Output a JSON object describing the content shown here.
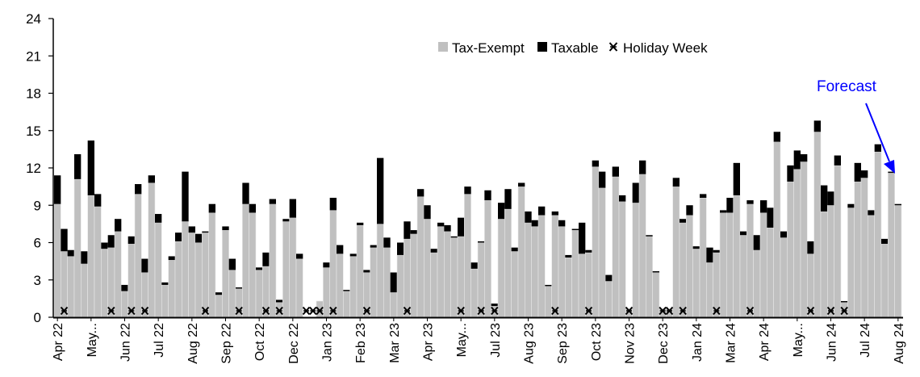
{
  "chart_data": {
    "type": "bar",
    "stacked": true,
    "title": "",
    "xlabel": "",
    "ylabel": "",
    "ylim": [
      0,
      24
    ],
    "yticks": [
      0,
      3,
      6,
      9,
      12,
      15,
      18,
      21,
      24
    ],
    "grid": false,
    "legend": {
      "placement": "top-center",
      "entries": [
        {
          "label": "Tax-Exempt",
          "symbol": "grey-square"
        },
        {
          "label": "Taxable",
          "symbol": "black-square"
        },
        {
          "label": "Holiday Week",
          "symbol": "x-marker"
        }
      ]
    },
    "x_tick_labels": [
      "Apr 22",
      "May...",
      "Jun 22",
      "Jul 22",
      "Aug 22",
      "Sep 22",
      "Oct 22",
      "Dec 22",
      "Jan 23",
      "Feb 23",
      "Mar 23",
      "Apr 23",
      "May...",
      "Jul 23",
      "Aug 23",
      "Sep 23",
      "Oct 23",
      "Nov 23",
      "Dec 23",
      "Jan 24",
      "Mar 24",
      "Apr 24",
      "May...",
      "Jun 24",
      "Jul 24",
      "Aug 24"
    ],
    "x_tick_every_n_weeks": 5,
    "series": [
      {
        "name": "Tax-Exempt",
        "color": "#c0c0c0",
        "values": [
          9.1,
          5.3,
          4.9,
          11.1,
          4.3,
          9.8,
          8.9,
          5.5,
          5.6,
          6.9,
          2.1,
          5.9,
          9.9,
          3.6,
          10.8,
          7.6,
          2.6,
          4.6,
          6.1,
          7.7,
          6.8,
          6.0,
          6.8,
          8.4,
          1.8,
          7.0,
          3.8,
          2.3,
          9.1,
          8.4,
          3.8,
          4.1,
          9.1,
          1.2,
          7.7,
          8.0,
          4.7,
          0,
          0,
          1.3,
          4.0,
          8.6,
          5.1,
          2.1,
          4.9,
          7.4,
          3.6,
          5.6,
          7.5,
          5.6,
          2.0,
          5.0,
          6.3,
          6.7,
          9.7,
          7.9,
          5.2,
          7.3,
          6.9,
          6.4,
          6.5,
          9.9,
          3.9,
          6.0,
          9.4,
          0.9,
          7.9,
          8.7,
          5.3,
          10.5,
          7.6,
          7.3,
          8.2,
          2.5,
          8.2,
          7.3,
          4.8,
          7.0,
          5.1,
          5.2,
          12.1,
          10.4,
          2.9,
          11.3,
          9.3,
          0.7,
          9.2,
          11.5,
          6.5,
          3.6,
          0.7,
          0.7,
          10.5,
          7.6,
          8.2,
          5.5,
          9.6,
          4.4,
          5.2,
          8.4,
          8.4,
          9.8,
          6.6,
          9.1,
          5.4,
          8.4,
          7.2,
          14.1,
          6.4,
          10.9,
          11.9,
          12.5,
          5.1,
          14.9,
          8.5,
          9.0,
          12.2,
          1.2,
          8.8,
          10.9,
          11.2,
          8.2,
          13.3,
          5.9,
          11.6,
          9.0
        ]
      },
      {
        "name": "Taxable",
        "color": "#000000",
        "values": [
          2.3,
          1.8,
          0.5,
          2.0,
          1.0,
          4.4,
          1.0,
          0.5,
          1.0,
          1.0,
          0.5,
          0.6,
          0.8,
          1.1,
          0.6,
          0.7,
          0.2,
          0.3,
          0.7,
          4.0,
          0.5,
          0.7,
          0.1,
          0.7,
          0.2,
          0.3,
          0.9,
          0.1,
          1.7,
          0.7,
          0.2,
          1.1,
          0.4,
          0.2,
          0.2,
          1.5,
          0.4,
          0,
          0,
          0,
          0.4,
          1.0,
          0.7,
          0.1,
          0.2,
          0.2,
          0.2,
          0.2,
          5.3,
          0.8,
          1.6,
          1.0,
          1.4,
          0.3,
          0.6,
          1.1,
          0.3,
          0.3,
          0.5,
          0.1,
          1.5,
          0.6,
          0.5,
          0.1,
          0.8,
          0.2,
          1.3,
          1.6,
          0.3,
          0.3,
          0.9,
          0.5,
          0.7,
          0.1,
          0.3,
          0.5,
          0.2,
          0.1,
          2.5,
          0.2,
          0.5,
          1.3,
          0.5,
          0.8,
          0.5,
          0,
          1.6,
          1.1,
          0.1,
          0.1,
          0,
          0,
          0.7,
          0.3,
          0.8,
          0.2,
          0.3,
          1.2,
          0.2,
          0.2,
          1.2,
          2.6,
          0.3,
          0.3,
          1.2,
          1.0,
          1.6,
          0.8,
          0.5,
          1.3,
          1.5,
          0.6,
          1.0,
          0.9,
          2.1,
          1.1,
          0.8,
          0.1,
          0.3,
          1.5,
          0.6,
          0.4,
          0.6,
          0.4,
          0.1,
          0.1
        ]
      }
    ],
    "holiday_weeks": [
      2,
      9,
      12,
      14,
      23,
      28,
      32,
      34,
      38,
      39,
      40,
      42,
      47,
      53,
      61,
      64,
      66,
      75,
      80,
      86,
      91,
      92,
      94,
      99,
      104,
      113,
      116,
      118
    ],
    "annotation": {
      "text": "Forecast",
      "color": "#0000ff",
      "points_to_week": 126
    }
  }
}
